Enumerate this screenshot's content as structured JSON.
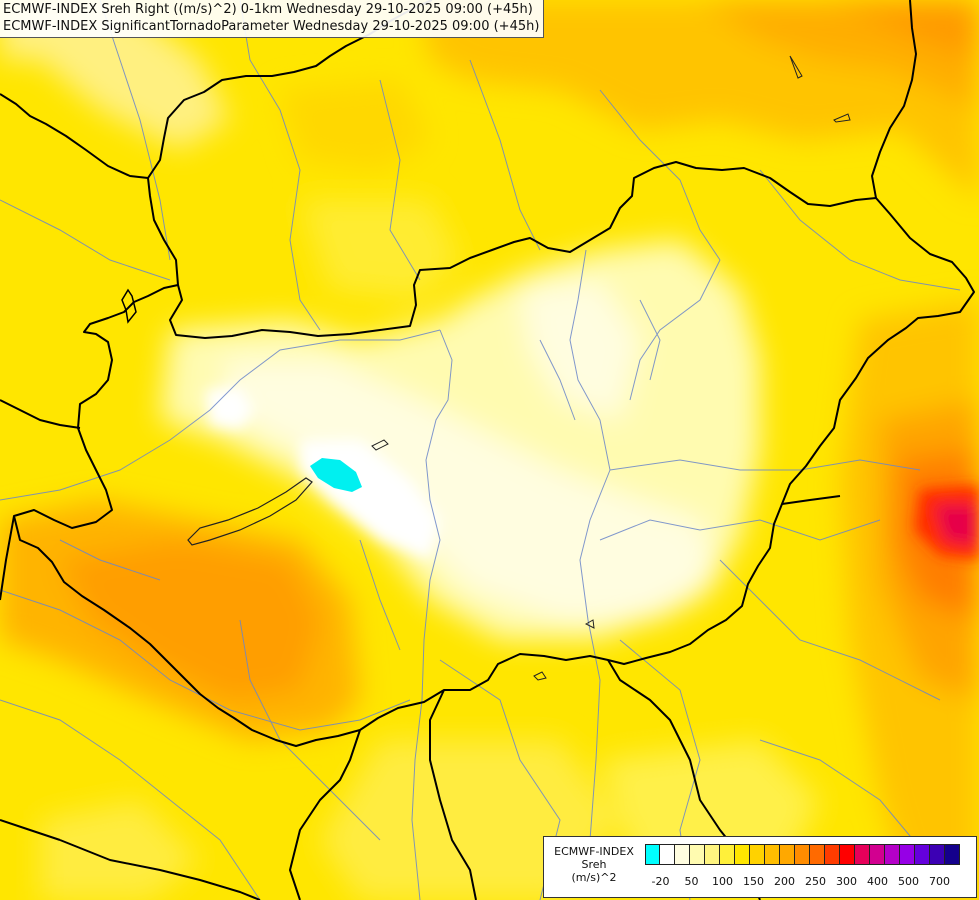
{
  "title_lines": [
    "ECMWF-INDEX Sreh Right ((m/s)^2) 0-1km Wednesday 29-10-2025 09:00 (+45h)",
    "ECMWF-INDEX SignificantTornadoParameter Wednesday 29-10-2025 09:00 (+45h)"
  ],
  "legend": {
    "line1": "ECMWF-INDEX",
    "line2": "Sreh",
    "line3": "(m/s)^2",
    "colors": [
      "#00ffff",
      "#ffffff",
      "#fffde0",
      "#fffbb0",
      "#fff580",
      "#fff03a",
      "#ffe600",
      "#ffd200",
      "#ffbe00",
      "#ffa800",
      "#ff8c00",
      "#ff6a00",
      "#ff3c00",
      "#ff0000",
      "#e6005a",
      "#d20090",
      "#b400c8",
      "#9600e6",
      "#6400dc",
      "#3c00b4",
      "#14008c"
    ],
    "tick_labels": [
      "-20",
      "50",
      "100",
      "150",
      "200",
      "250",
      "300",
      "400",
      "500",
      "700"
    ]
  }
}
